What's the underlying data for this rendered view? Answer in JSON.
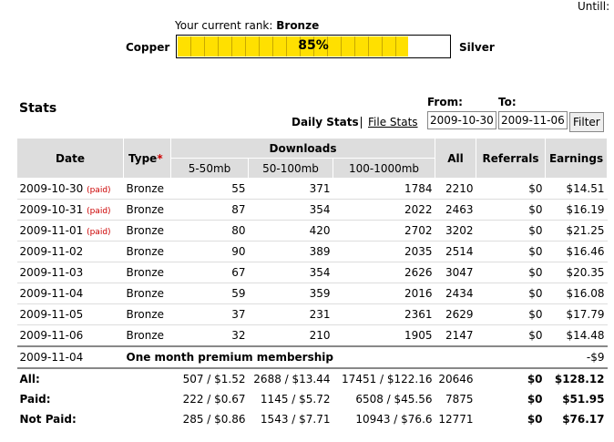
{
  "until_label": "Untill:",
  "rank": {
    "label": "Your current rank:",
    "value": "Bronze",
    "left": "Copper",
    "right": "Silver",
    "progress": 85,
    "progress_label": "85%"
  },
  "stats_title": "Stats",
  "tabs": [
    "Daily Stats",
    "File Stats"
  ],
  "filter": {
    "from_label": "From:",
    "from_value": "2009-10-30",
    "to_label": "To:",
    "to_value": "2009-11-06",
    "button": "Filter"
  },
  "table": {
    "headers": {
      "date": "Date",
      "type": "Type",
      "type_marker": "*",
      "downloads": "Downloads",
      "ranges": [
        "5-50mb",
        "50-100mb",
        "100-1000mb"
      ],
      "all": "All",
      "referrals": "Referrals",
      "earnings": "Earnings"
    },
    "rows": [
      {
        "date": "2009-10-30",
        "status": "(paid)",
        "type": "Bronze",
        "downloads": [
          55,
          371,
          1784
        ],
        "all": 2210,
        "referrals": "$0",
        "earnings": "$14.51"
      },
      {
        "date": "2009-10-31",
        "status": "(paid)",
        "type": "Bronze",
        "downloads": [
          87,
          354,
          2022
        ],
        "all": 2463,
        "referrals": "$0",
        "earnings": "$16.19"
      },
      {
        "date": "2009-11-01",
        "status": "(paid)",
        "type": "Bronze",
        "downloads": [
          80,
          420,
          2702
        ],
        "all": 3202,
        "referrals": "$0",
        "earnings": "$21.25"
      },
      {
        "date": "2009-11-02",
        "type": "Bronze",
        "downloads": [
          90,
          389,
          2035
        ],
        "all": 2514,
        "referrals": "$0",
        "earnings": "$16.46"
      },
      {
        "date": "2009-11-03",
        "type": "Bronze",
        "downloads": [
          67,
          354,
          2626
        ],
        "all": 3047,
        "referrals": "$0",
        "earnings": "$20.35"
      },
      {
        "date": "2009-11-04",
        "type": "Bronze",
        "downloads": [
          59,
          359,
          2016
        ],
        "all": 2434,
        "referrals": "$0",
        "earnings": "$16.08"
      },
      {
        "date": "2009-11-05",
        "type": "Bronze",
        "downloads": [
          37,
          231,
          2361
        ],
        "all": 2629,
        "referrals": "$0",
        "earnings": "$17.79"
      },
      {
        "date": "2009-11-06",
        "type": "Bronze",
        "downloads": [
          32,
          210,
          1905
        ],
        "all": 2147,
        "referrals": "$0",
        "earnings": "$14.48"
      }
    ],
    "adjustment": {
      "date": "2009-11-04",
      "description": "One month premium membership",
      "amount": "-$9"
    },
    "totals": [
      {
        "label": "All:",
        "downloads": [
          "507 / $1.52",
          "2688 / $13.44",
          "17451 / $122.16"
        ],
        "all": 20646,
        "referrals": "$0",
        "earnings": "$128.12"
      },
      {
        "label": "Paid:",
        "downloads": [
          "222 / $0.67",
          "1145 / $5.72",
          "6508 / $45.56"
        ],
        "all": 7875,
        "referrals": "$0",
        "earnings": "$51.95"
      },
      {
        "label": "Not Paid:",
        "downloads": [
          "285 / $0.86",
          "1543 / $7.71",
          "10943 / $76.6"
        ],
        "all": 12771,
        "referrals": "$0",
        "earnings": "$76.17"
      }
    ]
  }
}
